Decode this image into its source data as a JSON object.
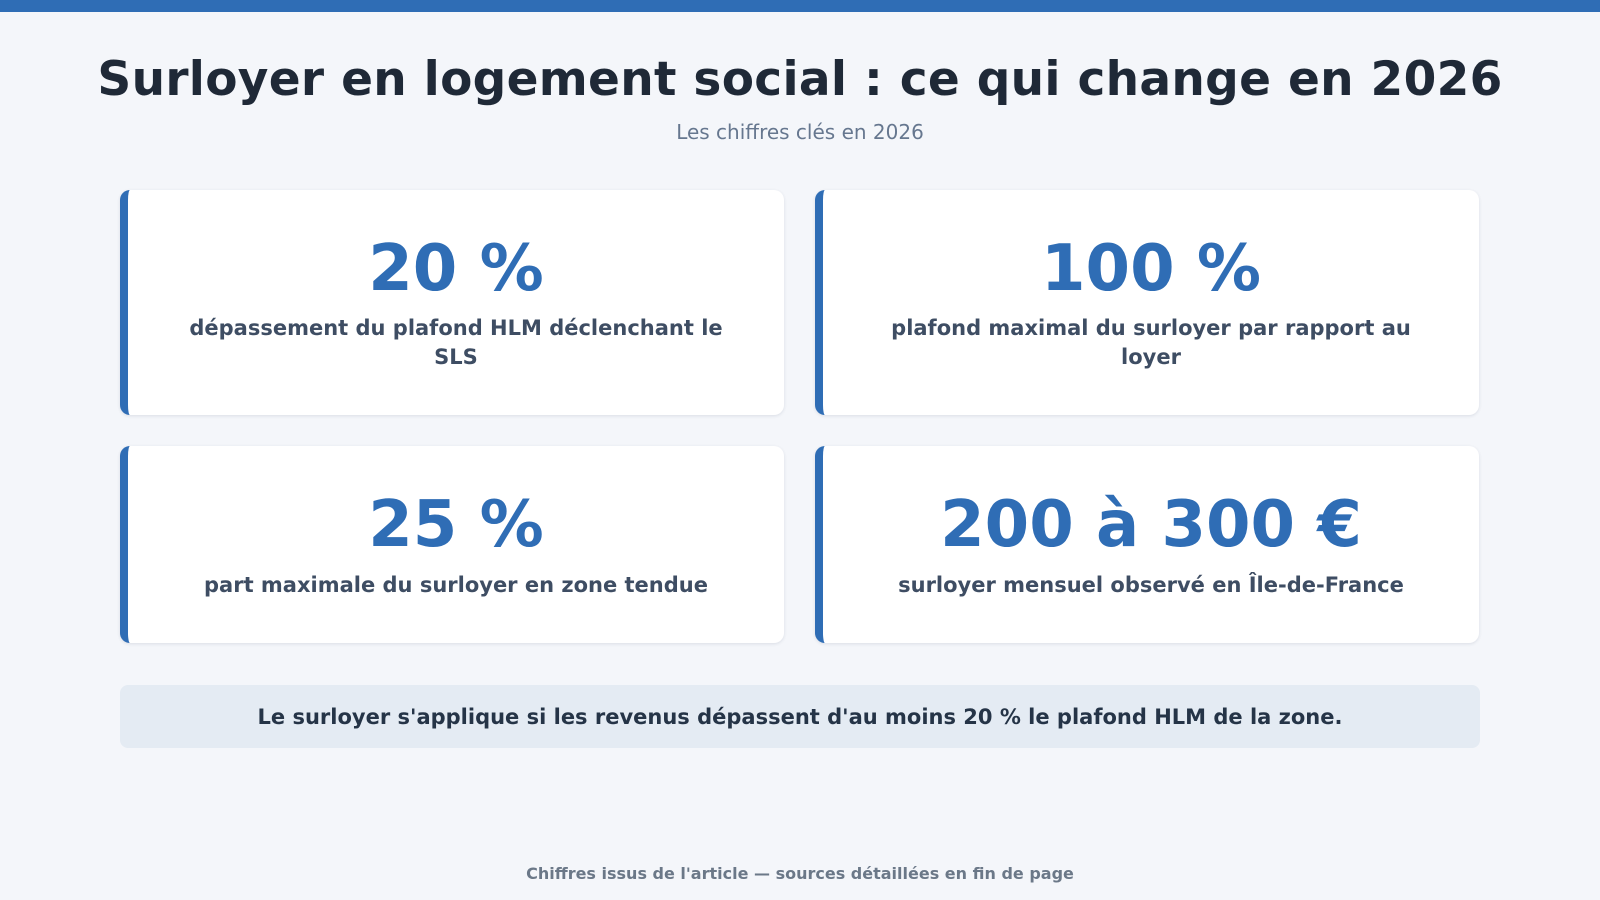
{
  "header": {
    "title": "Surloyer en logement social : ce qui change en 2026",
    "subtitle": "Les chiffres clés en 2026"
  },
  "stats": [
    {
      "value": "20 %",
      "label": "dépassement du plafond HLM déclenchant le SLS"
    },
    {
      "value": "100 %",
      "label": "plafond maximal du surloyer par rapport au loyer"
    },
    {
      "value": "25 %",
      "label": "part maximale du surloyer en zone tendue"
    },
    {
      "value": "200 à 300 €",
      "label": "surloyer mensuel observé en Île-de-France"
    }
  ],
  "note": "Le surloyer s'applique si les revenus dépassent d'au moins 20 % le plafond HLM de la zone.",
  "footer": "Chiffres issus de l'article — sources détaillées en fin de page",
  "colors": {
    "accent": "#2f6db5",
    "background": "#f4f6fa",
    "note_background": "#e4ebf3"
  }
}
